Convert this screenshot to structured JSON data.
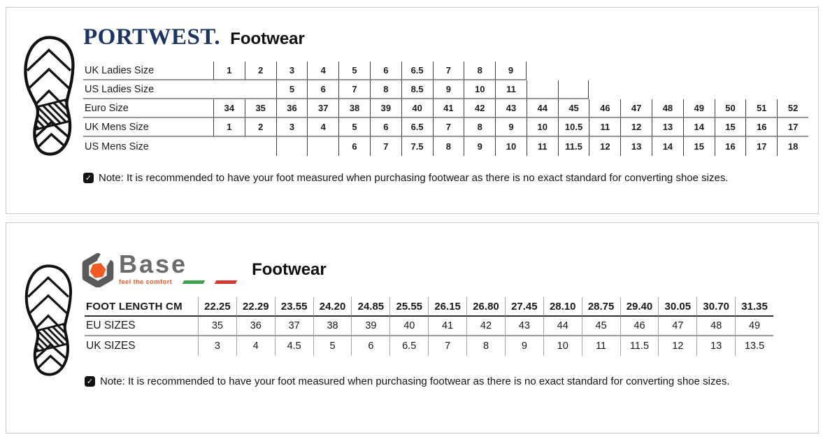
{
  "portwest_panel": {
    "brand": "PORTWEST.",
    "title": "Footwear",
    "table": {
      "rows": [
        {
          "label": "UK Ladies Size",
          "bottom": true,
          "values": [
            "1",
            "2",
            "3",
            "4",
            "5",
            "6",
            "6.5",
            "7",
            "8",
            "9",
            null,
            null,
            null,
            null,
            null,
            null,
            null,
            null,
            null
          ]
        },
        {
          "label": "US Ladies Size",
          "bottom": true,
          "values": [
            null,
            null,
            "5",
            "6",
            "7",
            "8",
            "8.5",
            "9",
            "10",
            "11",
            "",
            "",
            null,
            null,
            null,
            null,
            null,
            null,
            null
          ]
        },
        {
          "label": "Euro Size",
          "bottom": true,
          "values": [
            "34",
            "35",
            "36",
            "37",
            "38",
            "39",
            "40",
            "41",
            "42",
            "43",
            "44",
            "45",
            "46",
            "47",
            "48",
            "49",
            "50",
            "51",
            "52"
          ]
        },
        {
          "label": "UK Mens Size",
          "bottom": true,
          "values": [
            "1",
            "2",
            "3",
            "4",
            "5",
            "6",
            "6.5",
            "7",
            "8",
            "9",
            "10",
            "10.5",
            "11",
            "12",
            "13",
            "14",
            "15",
            "16",
            "17"
          ]
        },
        {
          "label": "US Mens Size",
          "bottom": false,
          "values": [
            null,
            null,
            "",
            "",
            "6",
            "7",
            "7.5",
            "8",
            "9",
            "10",
            "11",
            "11.5",
            "12",
            "13",
            "14",
            "15",
            "16",
            "17",
            "18"
          ]
        }
      ]
    },
    "note": "Note: It is recommended to have your foot measured when purchasing footwear as there is no exact standard for converting shoe sizes."
  },
  "base_panel": {
    "brand": "Base",
    "tagline": "feel the comfort",
    "title": "Footwear",
    "table": {
      "rows": [
        {
          "label": "FOOT LENGTH CM",
          "header": true,
          "bottom": true,
          "values": [
            "22.25",
            "22.29",
            "23.55",
            "24.20",
            "24.85",
            "25.55",
            "26.15",
            "26.80",
            "27.45",
            "28.10",
            "28.75",
            "29.40",
            "30.05",
            "30.70",
            "31.35"
          ]
        },
        {
          "label": "EU SIZES",
          "bottom": true,
          "values": [
            "35",
            "36",
            "37",
            "38",
            "39",
            "40",
            "41",
            "42",
            "43",
            "44",
            "45",
            "46",
            "47",
            "48",
            "49"
          ]
        },
        {
          "label": "UK SIZES",
          "bottom": false,
          "values": [
            "3",
            "4",
            "4.5",
            "5",
            "6",
            "6.5",
            "7",
            "8",
            "9",
            "10",
            "11",
            "11.5",
            "12",
            "13",
            "13.5"
          ]
        }
      ]
    },
    "note": "Note: It is recommended to have your foot measured when purchasing footwear as there is no exact standard for converting shoe sizes."
  },
  "icons": {
    "sole": "shoe-sole-print-icon",
    "note": "checked-note-icon",
    "note_glyph": "✓",
    "base_logo": "hex-nut-icon"
  },
  "colors": {
    "portwest_navy": "#1c3462",
    "base_orange": "#f15a24",
    "base_gray": "#6a6b6e",
    "flag_green": "#3fa24c",
    "flag_red": "#d63a34"
  }
}
